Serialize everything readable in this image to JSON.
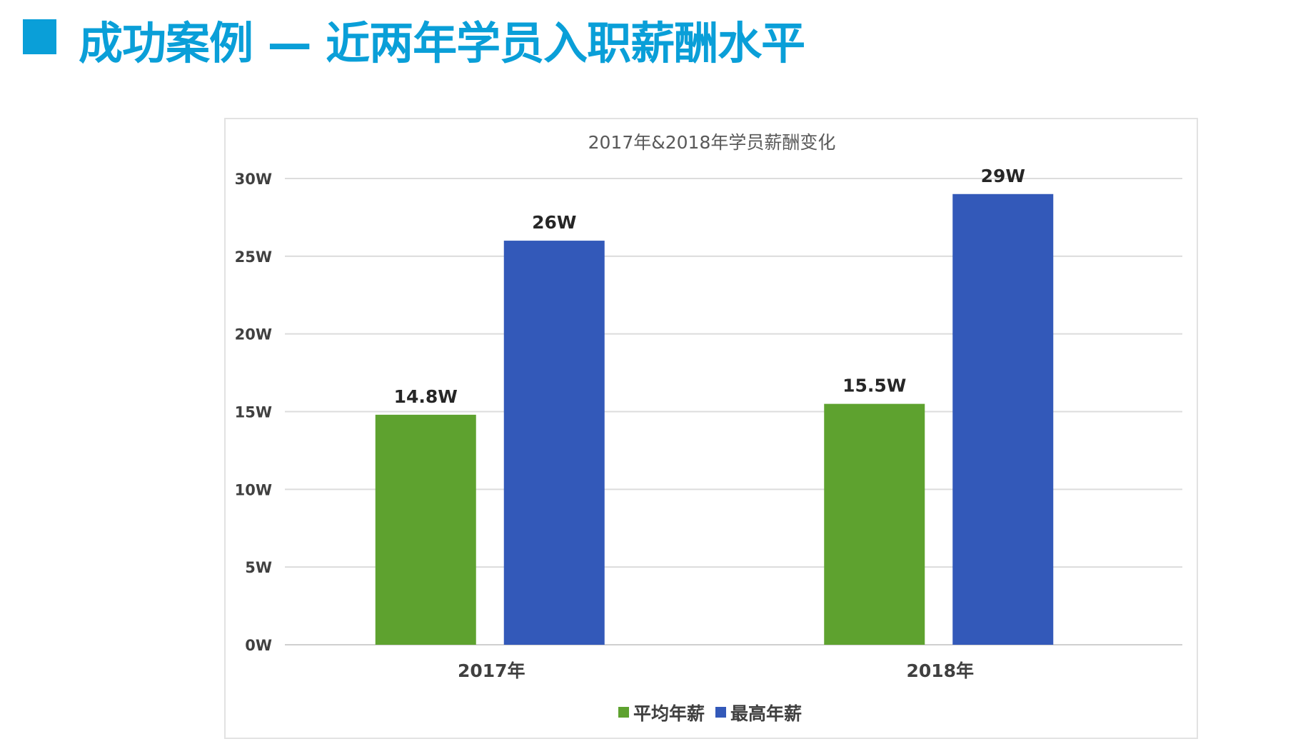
{
  "page": {
    "title": "成功案例 — 近两年学员入职薪酬水平",
    "accent_color": "#0a9fd8"
  },
  "chart_data": {
    "type": "bar",
    "title": "2017年&2018年学员薪酬变化",
    "categories": [
      "2017年",
      "2018年"
    ],
    "series": [
      {
        "name": "平均年薪",
        "values": [
          14.8,
          15.5
        ],
        "labels": [
          "14.8W",
          "15.5W"
        ],
        "color": "#5ea22f"
      },
      {
        "name": "最高年薪",
        "values": [
          26,
          29
        ],
        "labels": [
          "26W",
          "29W"
        ],
        "color": "#3359b9"
      }
    ],
    "y_ticks": [
      0,
      5,
      10,
      15,
      20,
      25,
      30
    ],
    "y_tick_labels": [
      "0W",
      "5W",
      "10W",
      "15W",
      "20W",
      "25W",
      "30W"
    ],
    "ylim": [
      0,
      30
    ],
    "xlabel": "",
    "ylabel": "",
    "grid": true,
    "legend": "bottom"
  }
}
